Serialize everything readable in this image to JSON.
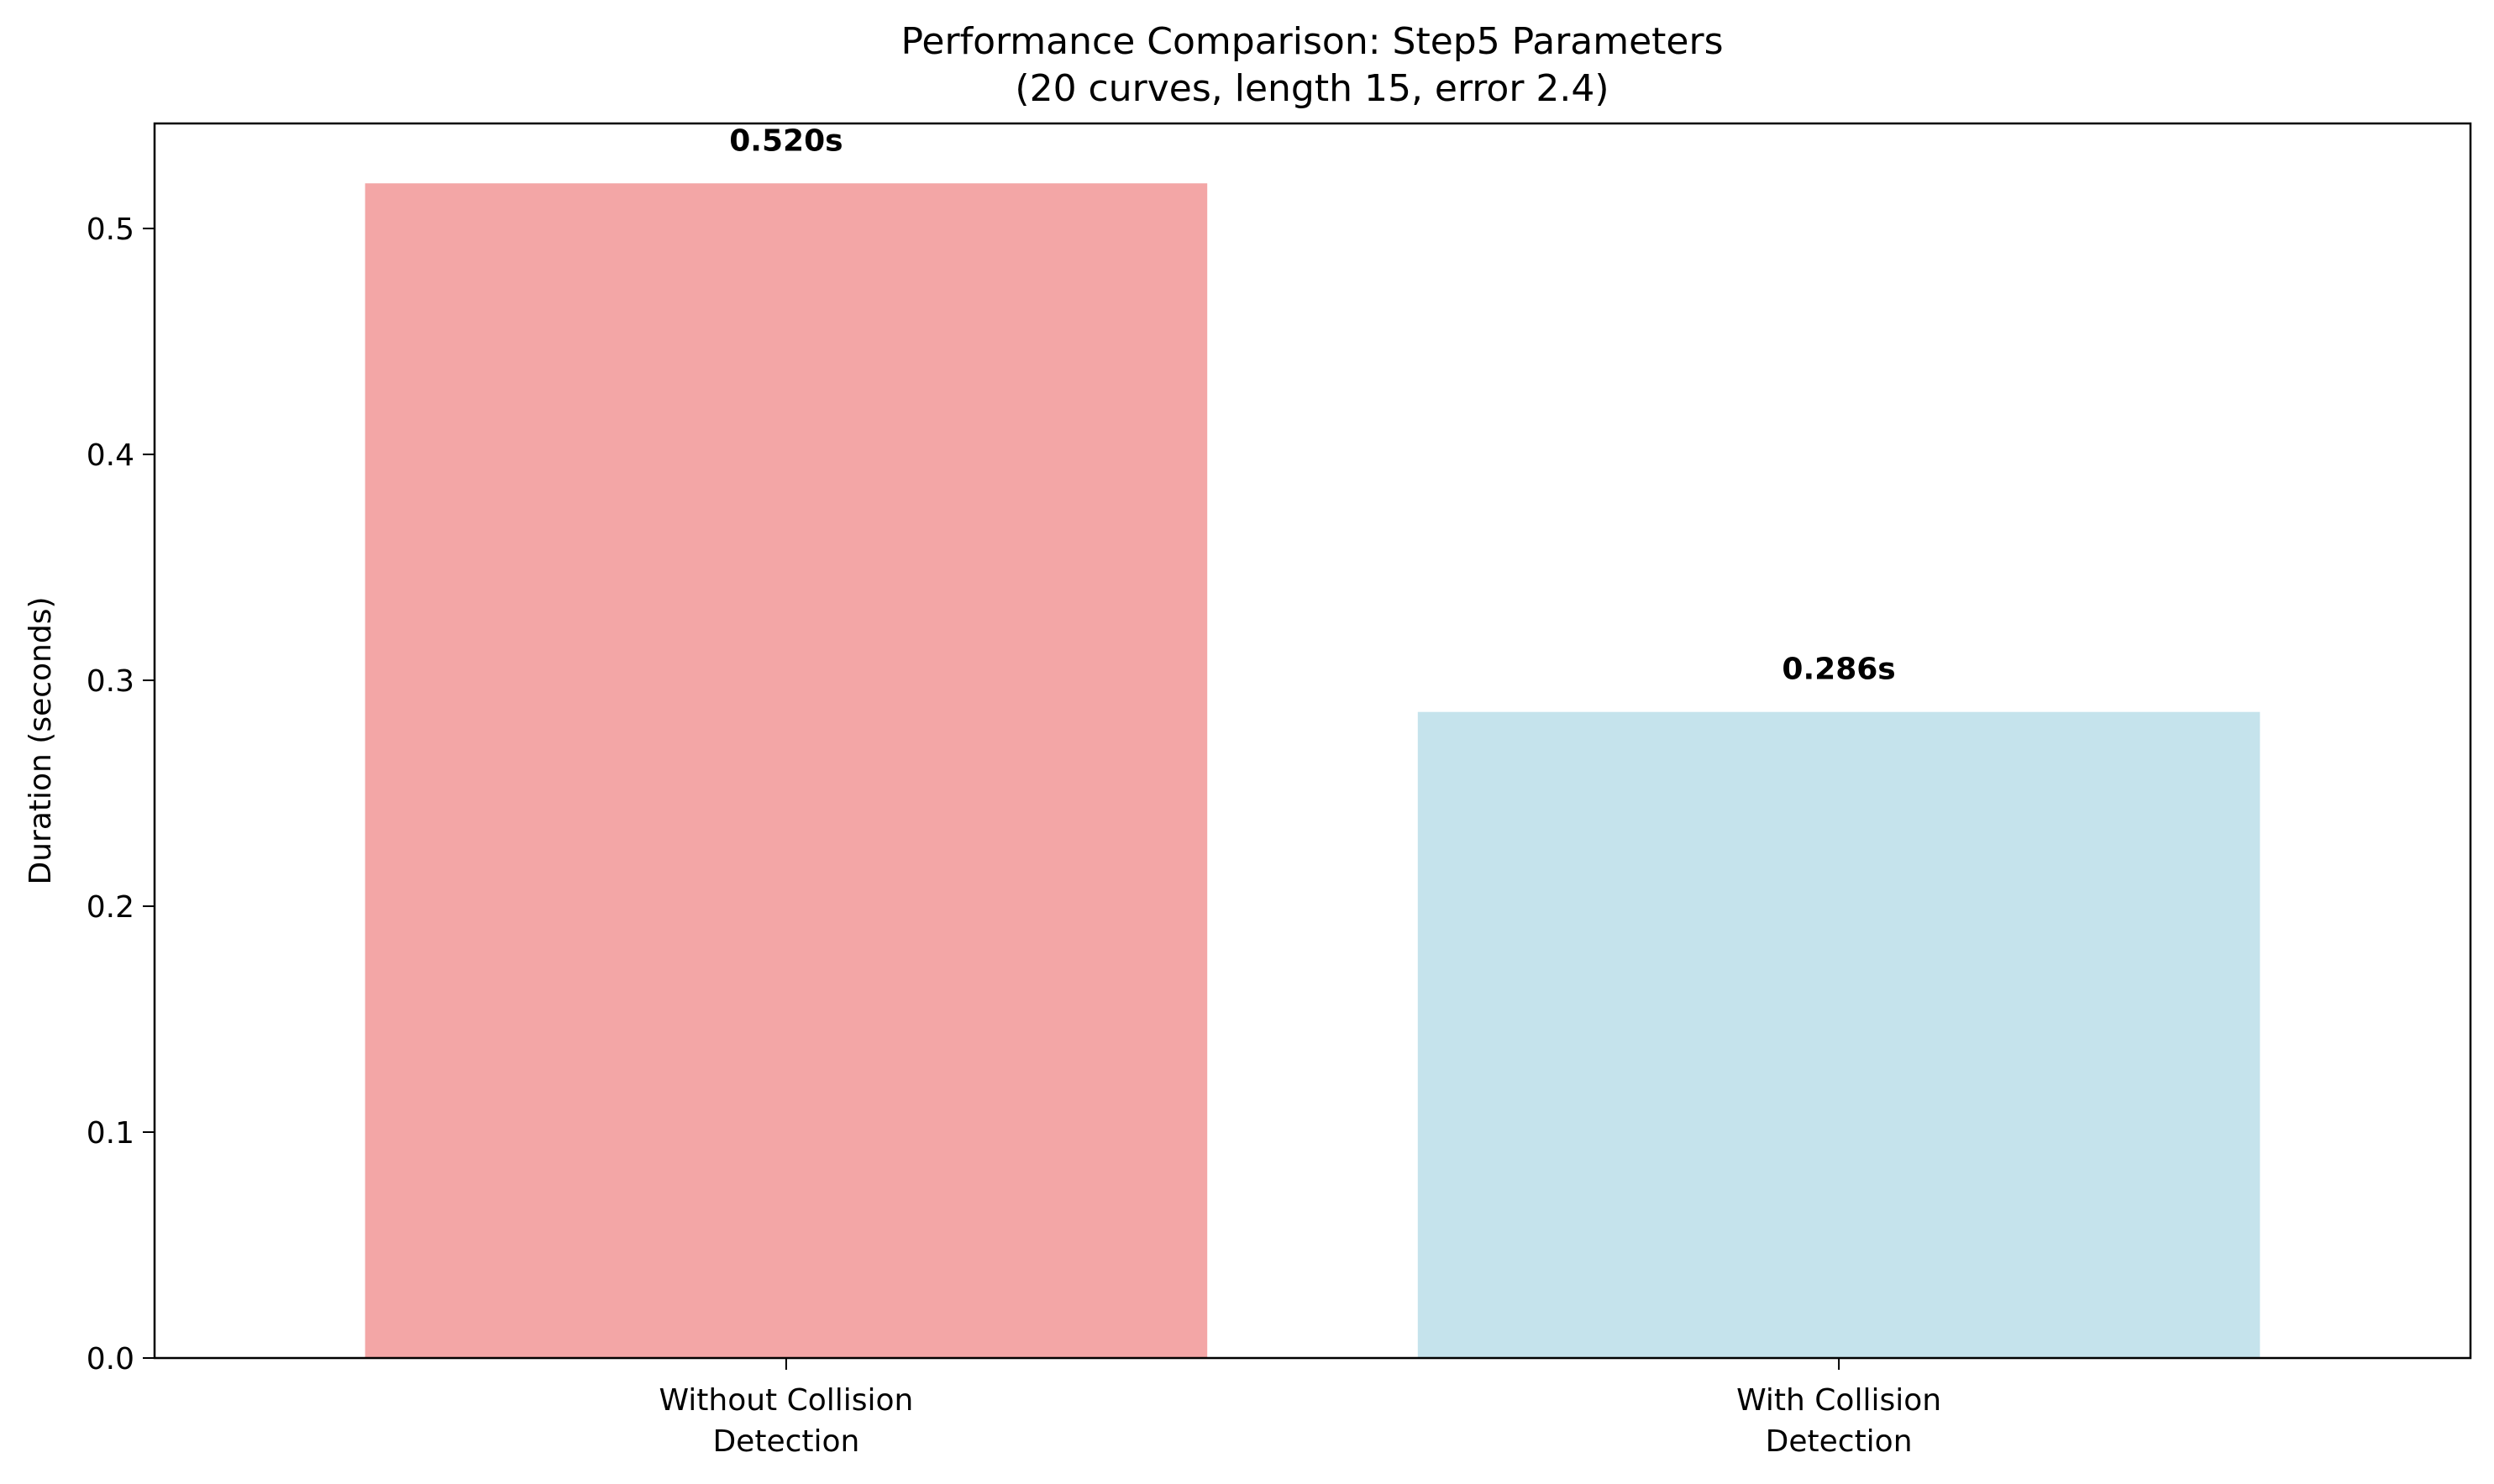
{
  "chart_data": {
    "type": "bar",
    "title": "Performance Comparison: Step5 Parameters",
    "subtitle": "(20 curves, length 15, error 2.4)",
    "xlabel": "",
    "ylabel": "Duration (seconds)",
    "categories": [
      [
        "Without Collision",
        "Detection"
      ],
      [
        "With Collision",
        "Detection"
      ]
    ],
    "values": [
      0.52,
      0.286
    ],
    "data_labels": [
      "0.520s",
      "0.286s"
    ],
    "colors": [
      "#f3a6a6",
      "#c5e3ec"
    ],
    "ylim": [
      0,
      0.5465
    ],
    "yticks": [
      0.0,
      0.1,
      0.2,
      0.3,
      0.4,
      0.5
    ],
    "ytick_labels": [
      "0.0",
      "0.1",
      "0.2",
      "0.3",
      "0.4",
      "0.5"
    ],
    "grid": false,
    "legend": "none"
  }
}
